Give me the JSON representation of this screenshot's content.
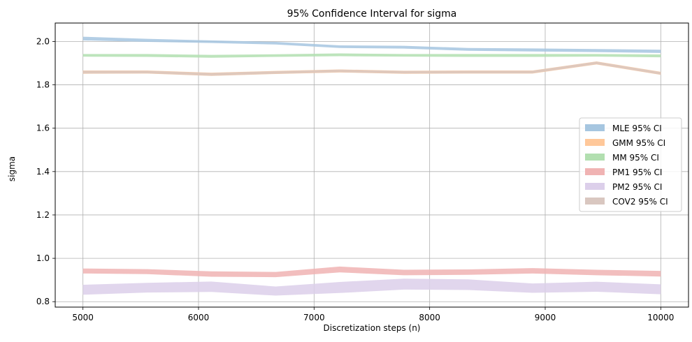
{
  "chart_data": {
    "type": "area",
    "title": "95% Confidence Interval for sigma",
    "xlabel": "Discretization steps (n)",
    "ylabel": "sigma",
    "xlim": [
      4760,
      10240
    ],
    "ylim": [
      0.775,
      2.085
    ],
    "xticks": [
      5000,
      6000,
      7000,
      8000,
      9000,
      10000
    ],
    "xtick_labels": [
      "5000",
      "6000",
      "7000",
      "8000",
      "9000",
      "10000"
    ],
    "yticks": [
      0.8,
      1.0,
      1.2,
      1.4,
      1.6,
      1.8,
      2.0
    ],
    "ytick_labels": [
      "0.8",
      "1.0",
      "1.2",
      "1.4",
      "1.6",
      "1.8",
      "2.0"
    ],
    "grid": true,
    "legend_position": "center-right",
    "x": [
      5000,
      5556,
      6111,
      6667,
      7222,
      7778,
      8333,
      8889,
      9444,
      10000
    ],
    "series": [
      {
        "name": "MLE 95% CI",
        "color": "#a6c6e0",
        "lower": [
          2.005,
          1.998,
          1.993,
          1.986,
          1.97,
          1.967,
          1.957,
          1.954,
          1.951,
          1.947
        ],
        "upper": [
          2.022,
          2.012,
          2.005,
          1.998,
          1.982,
          1.98,
          1.97,
          1.968,
          1.965,
          1.962
        ]
      },
      {
        "name": "GMM 95% CI",
        "color": "#ffc89a",
        "lower": [
          1.851,
          1.852,
          1.841,
          1.85,
          1.857,
          1.851,
          1.852,
          1.852,
          1.894,
          1.846
        ],
        "upper": [
          1.866,
          1.866,
          1.856,
          1.864,
          1.871,
          1.865,
          1.866,
          1.866,
          1.908,
          1.86
        ]
      },
      {
        "name": "MM 95% CI",
        "color": "#b2dfb0",
        "lower": [
          1.93,
          1.929,
          1.925,
          1.929,
          1.932,
          1.93,
          1.929,
          1.929,
          1.93,
          1.927
        ],
        "upper": [
          1.942,
          1.942,
          1.938,
          1.941,
          1.945,
          1.942,
          1.942,
          1.942,
          1.942,
          1.94
        ]
      },
      {
        "name": "PM1 95% CI",
        "color": "#f0b3b3",
        "lower": [
          0.93,
          0.927,
          0.915,
          0.913,
          0.935,
          0.922,
          0.924,
          0.93,
          0.922,
          0.916
        ],
        "upper": [
          0.953,
          0.95,
          0.94,
          0.937,
          0.962,
          0.947,
          0.949,
          0.955,
          0.947,
          0.942
        ]
      },
      {
        "name": "PM2 95% CI",
        "color": "#dccfea",
        "lower": [
          0.832,
          0.842,
          0.845,
          0.828,
          0.84,
          0.856,
          0.854,
          0.841,
          0.846,
          0.834
        ],
        "upper": [
          0.878,
          0.887,
          0.893,
          0.87,
          0.891,
          0.906,
          0.903,
          0.884,
          0.892,
          0.88
        ]
      },
      {
        "name": "COV2 95% CI",
        "color": "#d9c7c0",
        "lower": [
          1.852,
          1.853,
          1.842,
          1.851,
          1.858,
          1.852,
          1.853,
          1.853,
          1.895,
          1.847
        ],
        "upper": [
          1.865,
          1.865,
          1.855,
          1.863,
          1.87,
          1.864,
          1.865,
          1.865,
          1.907,
          1.859
        ]
      }
    ]
  }
}
